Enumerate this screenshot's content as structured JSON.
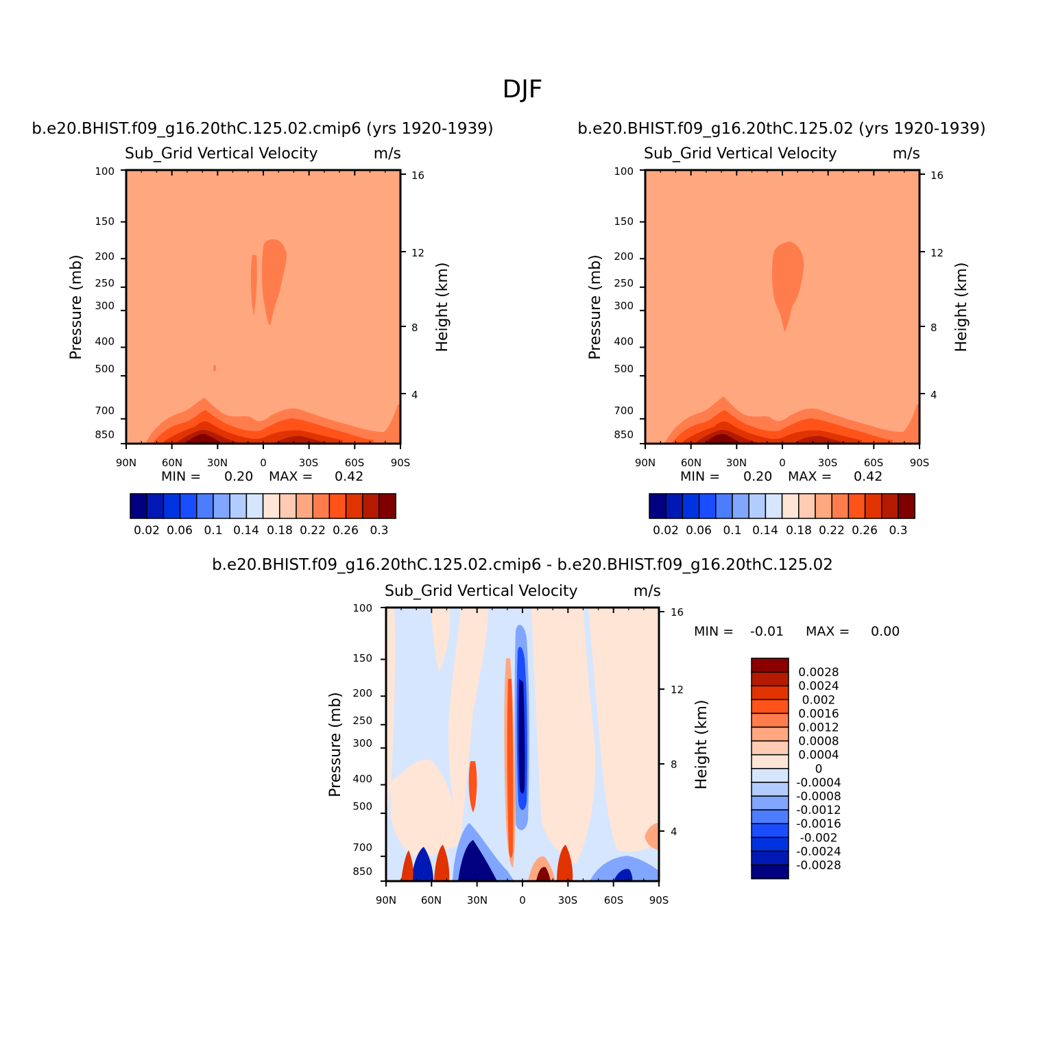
{
  "page_title": "DJF",
  "colors": {
    "palette": [
      "#000080",
      "#0019b4",
      "#0033e0",
      "#1a4dff",
      "#4d7dff",
      "#80a6ff",
      "#b3ccff",
      "#d6e6ff",
      "#ffe5d6",
      "#ffcbb3",
      "#ffa880",
      "#ff7d4d",
      "#ff531a",
      "#e03300",
      "#b31a00",
      "#800000"
    ],
    "diff_palette": [
      "#000080",
      "#0019b4",
      "#0033e0",
      "#1a4dff",
      "#4d7dff",
      "#80a6ff",
      "#b3ccff",
      "#d6e6ff",
      "#ffe5d6",
      "#ffcbb3",
      "#ffa880",
      "#ff7d4d",
      "#ff531a",
      "#e03300",
      "#b31a00",
      "#8b0000"
    ]
  },
  "chart_data": [
    {
      "type": "contour",
      "case_title": "b.e20.BHIST.f09_g16.20thC.125.02.cmip6 (yrs 1920-1939)",
      "variable": "Sub_Grid Vertical Velocity",
      "units": "m/s",
      "ylabel": "Pressure (mb)",
      "y2label": "Height (km)",
      "x_ticks": [
        "90N",
        "60N",
        "30N",
        "0",
        "30S",
        "60S",
        "90S"
      ],
      "y_ticks": [
        "100",
        "150",
        "200",
        "250",
        "300",
        "400",
        "500",
        "700",
        "850"
      ],
      "y_values": [
        100,
        150,
        200,
        250,
        300,
        400,
        500,
        700,
        850
      ],
      "y2_ticks": [
        "16",
        "12",
        "8",
        "4"
      ],
      "min_label": "MIN =",
      "min_value": "0.20",
      "max_label": "MAX =",
      "max_value": "0.42",
      "colorbar_labels": [
        "0.02",
        "0.06",
        "0.1",
        "0.14",
        "0.18",
        "0.22",
        "0.26",
        "0.3"
      ],
      "dominant_value": "0.2-0.22"
    },
    {
      "type": "contour",
      "case_title": "b.e20.BHIST.f09_g16.20thC.125.02 (yrs 1920-1939)",
      "variable": "Sub_Grid Vertical Velocity",
      "units": "m/s",
      "ylabel": "Pressure (mb)",
      "y2label": "Height (km)",
      "x_ticks": [
        "90N",
        "60N",
        "30N",
        "0",
        "30S",
        "60S",
        "90S"
      ],
      "y_ticks": [
        "100",
        "150",
        "200",
        "250",
        "300",
        "400",
        "500",
        "700",
        "850"
      ],
      "y_values": [
        100,
        150,
        200,
        250,
        300,
        400,
        500,
        700,
        850
      ],
      "y2_ticks": [
        "16",
        "12",
        "8",
        "4"
      ],
      "min_label": "MIN =",
      "min_value": "0.20",
      "max_label": "MAX =",
      "max_value": "0.42",
      "colorbar_labels": [
        "0.02",
        "0.06",
        "0.1",
        "0.14",
        "0.18",
        "0.22",
        "0.26",
        "0.3"
      ],
      "dominant_value": "0.2-0.22"
    },
    {
      "type": "contour",
      "case_title": "b.e20.BHIST.f09_g16.20thC.125.02.cmip6 - b.e20.BHIST.f09_g16.20thC.125.02",
      "variable": "Sub_Grid Vertical Velocity",
      "units": "m/s",
      "ylabel": "Pressure (mb)",
      "y2label": "Height (km)",
      "x_ticks": [
        "90N",
        "60N",
        "30N",
        "0",
        "30S",
        "60S",
        "90S"
      ],
      "y_ticks": [
        "100",
        "150",
        "200",
        "250",
        "300",
        "400",
        "500",
        "700",
        "850"
      ],
      "y_values": [
        100,
        150,
        200,
        250,
        300,
        400,
        500,
        700,
        850
      ],
      "y2_ticks": [
        "16",
        "12",
        "8",
        "4"
      ],
      "min_label": "MIN =",
      "min_value": "-0.01",
      "max_label": "MAX =",
      "max_value": "0.00",
      "colorbar_labels": [
        "0.0028",
        "0.0024",
        "0.002",
        "0.0016",
        "0.0012",
        "0.0008",
        "0.0004",
        "0",
        "-0.0004",
        "-0.0008",
        "-0.0012",
        "-0.0016",
        "-0.002",
        "-0.0024",
        "-0.0028"
      ]
    }
  ]
}
